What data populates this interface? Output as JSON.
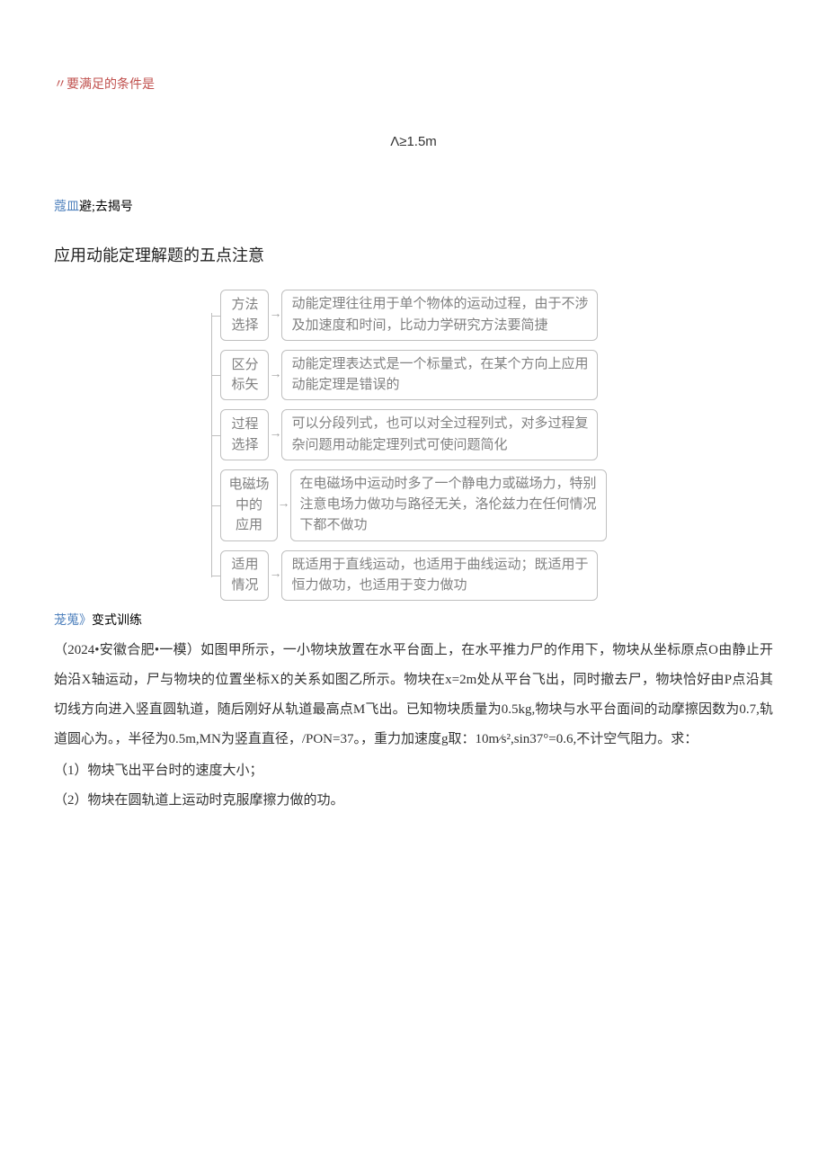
{
  "top_red": "〃要满足的条件是",
  "formula": "Λ≥1.5m",
  "label1_blue": "蔻皿",
  "label1_black": "避;去揭号",
  "heading": "应用动能定理解题的五点注意",
  "diagram": {
    "box_border_color": "#bfbfbf",
    "text_color": "#808080",
    "font_family": "KaiTi",
    "rows": [
      {
        "left": [
          "方法",
          "选择"
        ],
        "right": "动能定理往往用于单个物体的运动过程，由于不涉及加速度和时间，比动力学研究方法要简捷"
      },
      {
        "left": [
          "区分",
          "标矢"
        ],
        "right": "动能定理表达式是一个标量式，在某个方向上应用动能定理是错误的"
      },
      {
        "left": [
          "过程",
          "选择"
        ],
        "right": "可以分段列式，也可以对全过程列式，对多过程复杂问题用动能定理列式可使问题简化"
      },
      {
        "left": [
          "电磁场",
          "中的",
          "应用"
        ],
        "right": "在电磁场中运动时多了一个静电力或磁场力，特别注意电场力做功与路径无关，洛伦兹力在任何情况下都不做功"
      },
      {
        "left": [
          "适用",
          "情况"
        ],
        "right": "既适用于直线运动，也适用于曲线运动；既适用于恒力做功，也适用于变力做功"
      }
    ]
  },
  "label2_blue": "茏蒐》",
  "label2_black": "变式训练",
  "problem_text": "（2024•安徽合肥•一模）如图甲所示，一小物块放置在水平台面上，在水平推力尸的作用下，物块从坐标原点O由静止开始沿X轴运动，尸与物块的位置坐标X的关系如图乙所示。物块在x=2m处从平台飞出，同时撤去尸，物块恰好由P点沿其切线方向进入竖直圆轨道，随后刚好从轨道最高点M飞出。已知物块质量为0.5kg,物块与水平台面间的动摩擦因数为0.7,轨道圆心为。，半径为0.5m,MN为竖直直径，/PON=37。，重力加速度g取：10m⁄s²,sin37°=0.6,不计空气阻力。求：",
  "q1": "（1）物块飞出平台时的速度大小；",
  "q2": "（2）物块在圆轨道上运动时克服摩擦力做的功。"
}
